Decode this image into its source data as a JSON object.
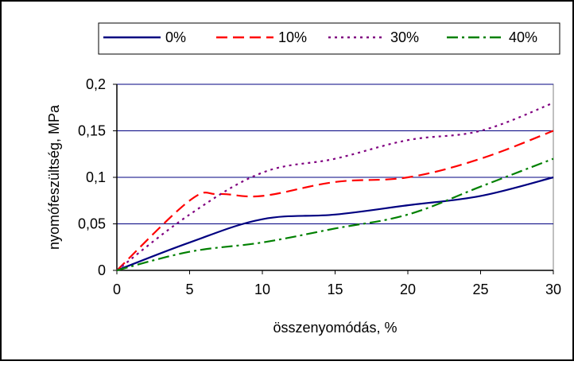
{
  "chart_data": {
    "type": "line",
    "title": "",
    "xlabel": "összenyomódás, %",
    "ylabel": "nyomófeszültség, MPa",
    "xlim": [
      0,
      30
    ],
    "ylim": [
      0,
      0.2
    ],
    "x_ticks": [
      0,
      5,
      10,
      15,
      20,
      25,
      30
    ],
    "x_tick_labels": [
      "0",
      "5",
      "10",
      "15",
      "20",
      "25",
      "30"
    ],
    "y_ticks": [
      0,
      0.05,
      0.1,
      0.15,
      0.2
    ],
    "y_tick_labels": [
      "0",
      "0,05",
      "0,1",
      "0,15",
      "0,2"
    ],
    "grid": "horizontal",
    "legend_position": "top",
    "series": [
      {
        "name": "0%",
        "color": "#000080",
        "style": "solid",
        "x": [
          0,
          5,
          10,
          15,
          20,
          25,
          30
        ],
        "y": [
          0,
          0.03,
          0.055,
          0.06,
          0.07,
          0.08,
          0.1
        ]
      },
      {
        "name": "10%",
        "color": "#ff0000",
        "style": "dashed",
        "x": [
          0,
          5,
          7,
          10,
          15,
          20,
          25,
          30
        ],
        "y": [
          0,
          0.075,
          0.082,
          0.08,
          0.095,
          0.1,
          0.12,
          0.15
        ]
      },
      {
        "name": "30%",
        "color": "#800080",
        "style": "dotted",
        "x": [
          0,
          5,
          10,
          15,
          20,
          25,
          30
        ],
        "y": [
          0,
          0.06,
          0.105,
          0.12,
          0.14,
          0.15,
          0.18
        ]
      },
      {
        "name": "40%",
        "color": "#008000",
        "style": "dashdot",
        "x": [
          0,
          5,
          10,
          15,
          20,
          25,
          30
        ],
        "y": [
          0,
          0.02,
          0.03,
          0.045,
          0.06,
          0.09,
          0.12
        ]
      }
    ]
  }
}
